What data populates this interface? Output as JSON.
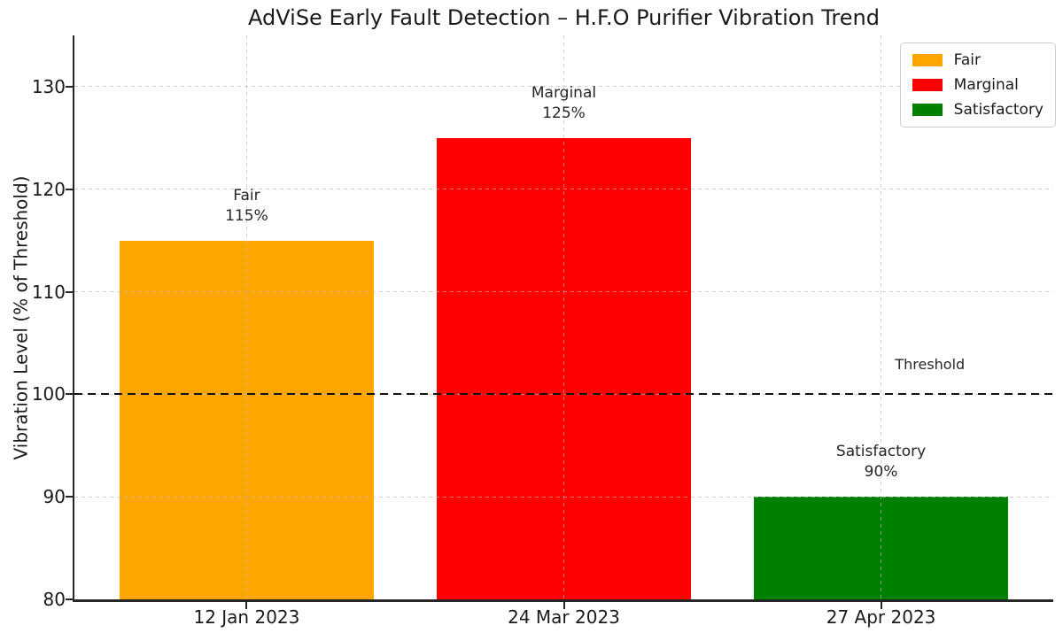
{
  "chart_data": {
    "type": "bar",
    "title": "AdViSe Early Fault Detection – H.F.O Purifier Vibration Trend",
    "xlabel": "",
    "ylabel": "Vibration Level (% of Threshold)",
    "ylim": [
      80,
      135
    ],
    "yticks": [
      80,
      90,
      100,
      110,
      120,
      130
    ],
    "grid": {
      "visible": true,
      "style": "dashed"
    },
    "categories": [
      "12 Jan 2023",
      "24 Mar 2023",
      "27 Apr 2023"
    ],
    "values": [
      115,
      125,
      90
    ],
    "bars": [
      {
        "category": "12 Jan 2023",
        "status": "Fair",
        "value": 115,
        "value_label": "115%",
        "color": "#FFA500"
      },
      {
        "category": "24 Mar 2023",
        "status": "Marginal",
        "value": 125,
        "value_label": "125%",
        "color": "#FF0000"
      },
      {
        "category": "27 Apr 2023",
        "status": "Satisfactory",
        "value": 90,
        "value_label": "90%",
        "color": "#008000"
      }
    ],
    "threshold": {
      "value": 100,
      "label": "Threshold"
    },
    "legend": {
      "position": "upper right",
      "entries": [
        {
          "label": "Fair",
          "color": "#FFA500"
        },
        {
          "label": "Marginal",
          "color": "#FF0000"
        },
        {
          "label": "Satisfactory",
          "color": "#008000"
        }
      ]
    }
  }
}
